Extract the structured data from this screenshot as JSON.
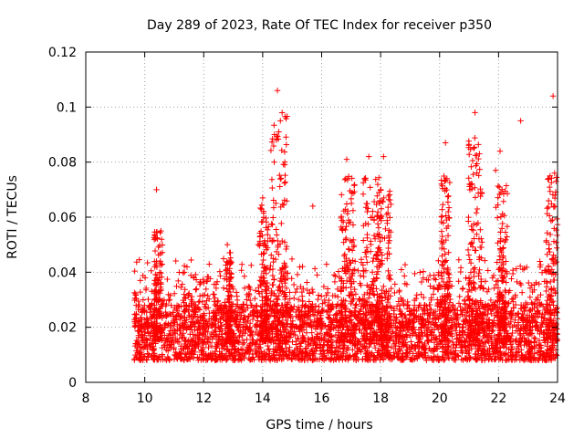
{
  "chart_data": {
    "type": "scatter",
    "title": "Day 289 of 2023, Rate Of TEC Index for receiver p350",
    "xlabel": "GPS time / hours",
    "ylabel": "ROTI / TECUs",
    "xlim": [
      8,
      24
    ],
    "ylim": [
      0,
      0.12
    ],
    "x_ticks": [
      8,
      10,
      12,
      14,
      16,
      18,
      20,
      22,
      24
    ],
    "x_tick_labels": [
      "8",
      "10",
      "12",
      "14",
      "16",
      "18",
      "20",
      "22",
      "24"
    ],
    "y_ticks": [
      0,
      0.02,
      0.04,
      0.06,
      0.08,
      0.1,
      0.12
    ],
    "y_tick_labels": [
      "0",
      "0.02",
      "0.04",
      "0.06",
      "0.08",
      "0.1",
      "0.12"
    ],
    "grid": true,
    "marker": "plus",
    "marker_color": "#ff0000",
    "series": [
      {
        "name": "ROTI",
        "x_range": [
          9.65,
          23.98
        ],
        "baseline_range": [
          0.008,
          0.025
        ],
        "notable_points": [
          {
            "x": 9.85,
            "y": 0.037
          },
          {
            "x": 10.4,
            "y": 0.07
          },
          {
            "x": 10.55,
            "y": 0.055
          },
          {
            "x": 12.8,
            "y": 0.05
          },
          {
            "x": 13.85,
            "y": 0.05
          },
          {
            "x": 14.0,
            "y": 0.067
          },
          {
            "x": 14.4,
            "y": 0.09
          },
          {
            "x": 14.5,
            "y": 0.106
          },
          {
            "x": 14.6,
            "y": 0.095
          },
          {
            "x": 14.75,
            "y": 0.08
          },
          {
            "x": 15.7,
            "y": 0.064
          },
          {
            "x": 16.85,
            "y": 0.081
          },
          {
            "x": 17.6,
            "y": 0.082
          },
          {
            "x": 18.1,
            "y": 0.082
          },
          {
            "x": 18.0,
            "y": 0.07
          },
          {
            "x": 20.2,
            "y": 0.087
          },
          {
            "x": 20.25,
            "y": 0.074
          },
          {
            "x": 21.2,
            "y": 0.098
          },
          {
            "x": 21.35,
            "y": 0.083
          },
          {
            "x": 21.1,
            "y": 0.072
          },
          {
            "x": 21.9,
            "y": 0.077
          },
          {
            "x": 22.05,
            "y": 0.084
          },
          {
            "x": 22.75,
            "y": 0.095
          },
          {
            "x": 23.85,
            "y": 0.104
          },
          {
            "x": 23.9,
            "y": 0.076
          },
          {
            "x": 23.95,
            "y": 0.073
          }
        ],
        "clusters": [
          {
            "x": 10.45,
            "spread": 0.15,
            "peak": 0.055
          },
          {
            "x": 12.85,
            "spread": 0.1,
            "peak": 0.048
          },
          {
            "x": 14.05,
            "spread": 0.15,
            "peak": 0.065
          },
          {
            "x": 14.55,
            "spread": 0.3,
            "peak": 0.098
          },
          {
            "x": 16.9,
            "spread": 0.25,
            "peak": 0.075
          },
          {
            "x": 17.7,
            "spread": 0.3,
            "peak": 0.075
          },
          {
            "x": 18.1,
            "spread": 0.25,
            "peak": 0.07
          },
          {
            "x": 20.2,
            "spread": 0.15,
            "peak": 0.075
          },
          {
            "x": 21.2,
            "spread": 0.25,
            "peak": 0.09
          },
          {
            "x": 22.1,
            "spread": 0.2,
            "peak": 0.075
          },
          {
            "x": 23.8,
            "spread": 0.2,
            "peak": 0.075
          }
        ]
      }
    ]
  }
}
